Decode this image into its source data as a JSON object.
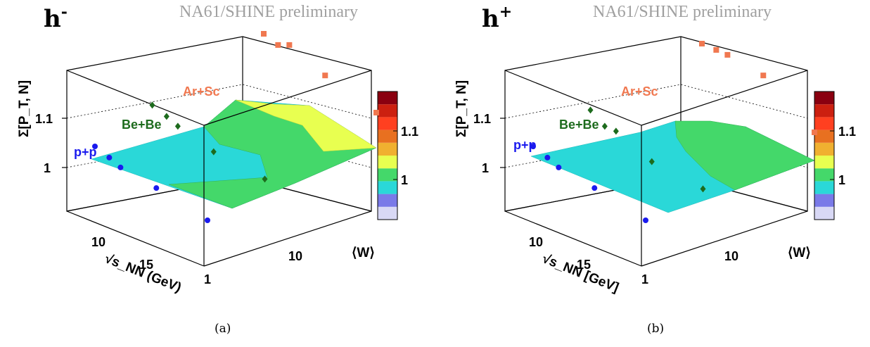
{
  "panels": [
    {
      "title": "h",
      "title_sup": "-",
      "watermark": "NA61/SHINE preliminary",
      "z_axis_label": "Σ[P_T, N]",
      "z_ticks": [
        "1.1",
        "1"
      ],
      "energy_ticks": [
        "10",
        "15"
      ],
      "energy_label": "√s_NN (GeV)",
      "w_ticks": [
        "1",
        "10"
      ],
      "w_label": "⟨W⟩",
      "palette_ticks": [
        "1.1",
        "1"
      ],
      "systems": [
        "p+p",
        "Be+Be",
        "Ar+Sc"
      ],
      "caption": "(a)"
    },
    {
      "title": "h",
      "title_sup": "+",
      "watermark": "NA61/SHINE preliminary",
      "z_axis_label": "Σ[P_T, N]",
      "z_ticks": [
        "1.1",
        "1"
      ],
      "energy_ticks": [
        "10",
        "15"
      ],
      "energy_label": "√s_NN [GeV]",
      "w_ticks": [
        "1",
        "10"
      ],
      "w_label": "⟨W⟩",
      "palette_ticks": [
        "1.1",
        "1"
      ],
      "systems": [
        "p+p",
        "Be+Be",
        "Ar+Sc"
      ],
      "caption": "(b)"
    }
  ],
  "colors": {
    "pp": "#1a1aee",
    "bebe": "#1d6b1d",
    "arsc": "#f07850",
    "palette": [
      "#d8d8f5",
      "#7a7ae8",
      "#2ad8d8",
      "#44d86a",
      "#e8ff50",
      "#f0b030",
      "#e87020",
      "#ff4020",
      "#cc2010",
      "#8a0010"
    ]
  },
  "chart_data": [
    {
      "type": "scatter",
      "subtitle": "h-",
      "xlabel": "⟨W⟩",
      "ylabel": "√s_NN (GeV)",
      "zlabel": "Σ[P_T, N]",
      "z_ticks": [
        1.0,
        1.1
      ],
      "series": [
        {
          "name": "p+p",
          "points": [
            [
              1,
              6.3,
              1.02
            ],
            [
              1,
              7.7,
              1.01
            ],
            [
              1,
              8.8,
              1.0
            ],
            [
              1,
              12.3,
              0.99
            ],
            [
              1,
              17.3,
              0.97
            ]
          ]
        },
        {
          "name": "Be+Be",
          "points": [
            [
              3.5,
              6.3,
              1.06
            ],
            [
              3.5,
              7.7,
              1.05
            ],
            [
              3.5,
              8.8,
              1.04
            ],
            [
              3.5,
              12.3,
              1.02
            ],
            [
              3.5,
              17.3,
              1.01
            ]
          ]
        },
        {
          "name": "Ar+Sc",
          "points": [
            [
              40,
              6.3,
              1.12
            ],
            [
              40,
              7.7,
              1.11
            ],
            [
              40,
              8.8,
              1.12
            ],
            [
              40,
              12.3,
              1.09
            ],
            [
              40,
              17.3,
              1.06
            ]
          ]
        }
      ]
    },
    {
      "type": "scatter",
      "subtitle": "h+",
      "xlabel": "⟨W⟩",
      "ylabel": "√s_NN [GeV]",
      "zlabel": "Σ[P_T, N]",
      "z_ticks": [
        1.0,
        1.1
      ],
      "series": [
        {
          "name": "p+p",
          "points": [
            [
              1,
              6.3,
              1.02
            ],
            [
              1,
              7.7,
              1.01
            ],
            [
              1,
              8.8,
              1.0
            ],
            [
              1,
              12.3,
              0.99
            ],
            [
              1,
              17.3,
              0.97
            ]
          ]
        },
        {
          "name": "Be+Be",
          "points": [
            [
              3.5,
              6.3,
              1.05
            ],
            [
              3.5,
              7.7,
              1.03
            ],
            [
              3.5,
              8.8,
              1.03
            ],
            [
              3.5,
              12.3,
              1.0
            ],
            [
              3.5,
              17.3,
              0.99
            ]
          ]
        },
        {
          "name": "Ar+Sc",
          "points": [
            [
              40,
              6.3,
              1.1
            ],
            [
              40,
              7.7,
              1.1
            ],
            [
              40,
              8.8,
              1.1
            ],
            [
              40,
              12.3,
              1.09
            ],
            [
              40,
              17.3,
              1.02
            ]
          ]
        }
      ]
    }
  ]
}
